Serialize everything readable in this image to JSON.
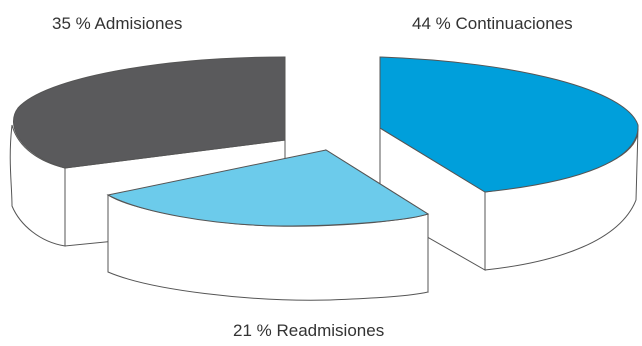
{
  "chart_data": {
    "type": "pie",
    "style": "3d-exploded",
    "title": "",
    "slices": [
      {
        "label": "35 % Admisiones",
        "value": 35,
        "color": "#5a5a5c"
      },
      {
        "label": "44 % Continuaciones",
        "value": 44,
        "color": "#009fdb"
      },
      {
        "label": "21 % Readmisiones",
        "value": 21,
        "color": "#6ccbeb"
      }
    ]
  }
}
